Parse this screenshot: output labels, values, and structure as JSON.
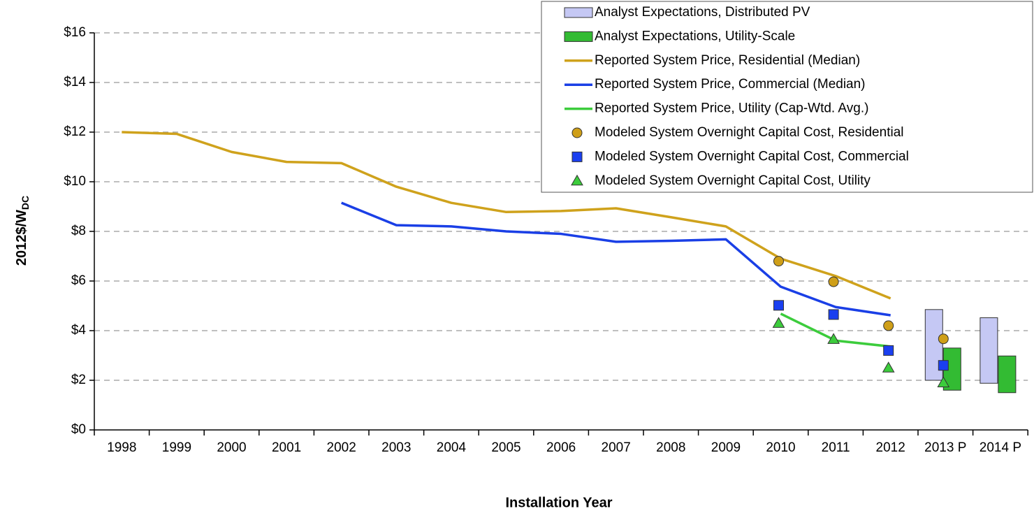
{
  "chart_data": {
    "type": "line",
    "xlabel": "Installation Year",
    "ylabel": "2012$/W",
    "ylabel_sub": "DC",
    "categories": [
      "1998",
      "1999",
      "2000",
      "2001",
      "2002",
      "2003",
      "2004",
      "2005",
      "2006",
      "2007",
      "2008",
      "2009",
      "2010",
      "2011",
      "2012",
      "2013 P",
      "2014 P"
    ],
    "ylim": [
      0,
      16
    ],
    "yticks": [
      {
        "value": 0,
        "label": "$0"
      },
      {
        "value": 2,
        "label": "$2"
      },
      {
        "value": 4,
        "label": "$4"
      },
      {
        "value": 6,
        "label": "$6"
      },
      {
        "value": 8,
        "label": "$8"
      },
      {
        "value": 10,
        "label": "$10"
      },
      {
        "value": 12,
        "label": "$12"
      },
      {
        "value": 14,
        "label": "$14"
      },
      {
        "value": 16,
        "label": "$16"
      }
    ],
    "grid": true,
    "legend": "upper right",
    "ranges": [
      {
        "name": "Analyst Expectations, Distributed PV",
        "color": "#c5c8f4",
        "low": [
          null,
          null,
          null,
          null,
          null,
          null,
          null,
          null,
          null,
          null,
          null,
          null,
          null,
          null,
          null,
          2.0,
          1.88
        ],
        "high": [
          null,
          null,
          null,
          null,
          null,
          null,
          null,
          null,
          null,
          null,
          null,
          null,
          null,
          null,
          null,
          4.85,
          4.52
        ]
      },
      {
        "name": "Analyst Expectations, Utility-Scale",
        "color": "#33bb33",
        "low": [
          null,
          null,
          null,
          null,
          null,
          null,
          null,
          null,
          null,
          null,
          null,
          null,
          null,
          null,
          null,
          1.6,
          1.5
        ],
        "high": [
          null,
          null,
          null,
          null,
          null,
          null,
          null,
          null,
          null,
          null,
          null,
          null,
          null,
          null,
          null,
          3.3,
          2.98
        ]
      }
    ],
    "series": [
      {
        "name": "Reported System Price, Residential (Median)",
        "color": "#cfa21c",
        "values": [
          12.0,
          11.93,
          11.2,
          10.8,
          10.75,
          9.8,
          9.15,
          8.78,
          8.82,
          8.93,
          8.57,
          8.2,
          6.9,
          6.2,
          5.3,
          null,
          null
        ]
      },
      {
        "name": "Reported System Price, Commercial (Median)",
        "color": "#1a3fe6",
        "values": [
          null,
          null,
          null,
          null,
          9.15,
          8.25,
          8.2,
          8.0,
          7.9,
          7.58,
          7.62,
          7.68,
          5.77,
          4.95,
          4.62,
          null,
          null
        ]
      },
      {
        "name": "Reported System Price, Utility (Cap-Wtd. Avg.)",
        "color": "#3ccc3c",
        "values": [
          null,
          null,
          null,
          null,
          null,
          null,
          null,
          null,
          null,
          null,
          null,
          null,
          4.68,
          3.6,
          3.36,
          null,
          null
        ]
      }
    ],
    "markers": [
      {
        "name": "Modeled System Overnight Capital Cost, Residential",
        "color": "#cf9f18",
        "shape": "circle",
        "values": [
          null,
          null,
          null,
          null,
          null,
          null,
          null,
          null,
          null,
          null,
          null,
          null,
          6.8,
          5.97,
          4.2,
          3.67,
          null
        ]
      },
      {
        "name": "Modeled System Overnight Capital Cost, Commercial",
        "color": "#1a3ff0",
        "shape": "square",
        "values": [
          null,
          null,
          null,
          null,
          null,
          null,
          null,
          null,
          null,
          null,
          null,
          null,
          5.02,
          4.65,
          3.2,
          2.6,
          null
        ]
      },
      {
        "name": "Modeled System Overnight Capital Cost, Utility",
        "color": "#3ccc3c",
        "shape": "triangle",
        "values": [
          null,
          null,
          null,
          null,
          null,
          null,
          null,
          null,
          null,
          null,
          null,
          null,
          4.3,
          3.65,
          2.5,
          1.9,
          null
        ]
      }
    ]
  }
}
